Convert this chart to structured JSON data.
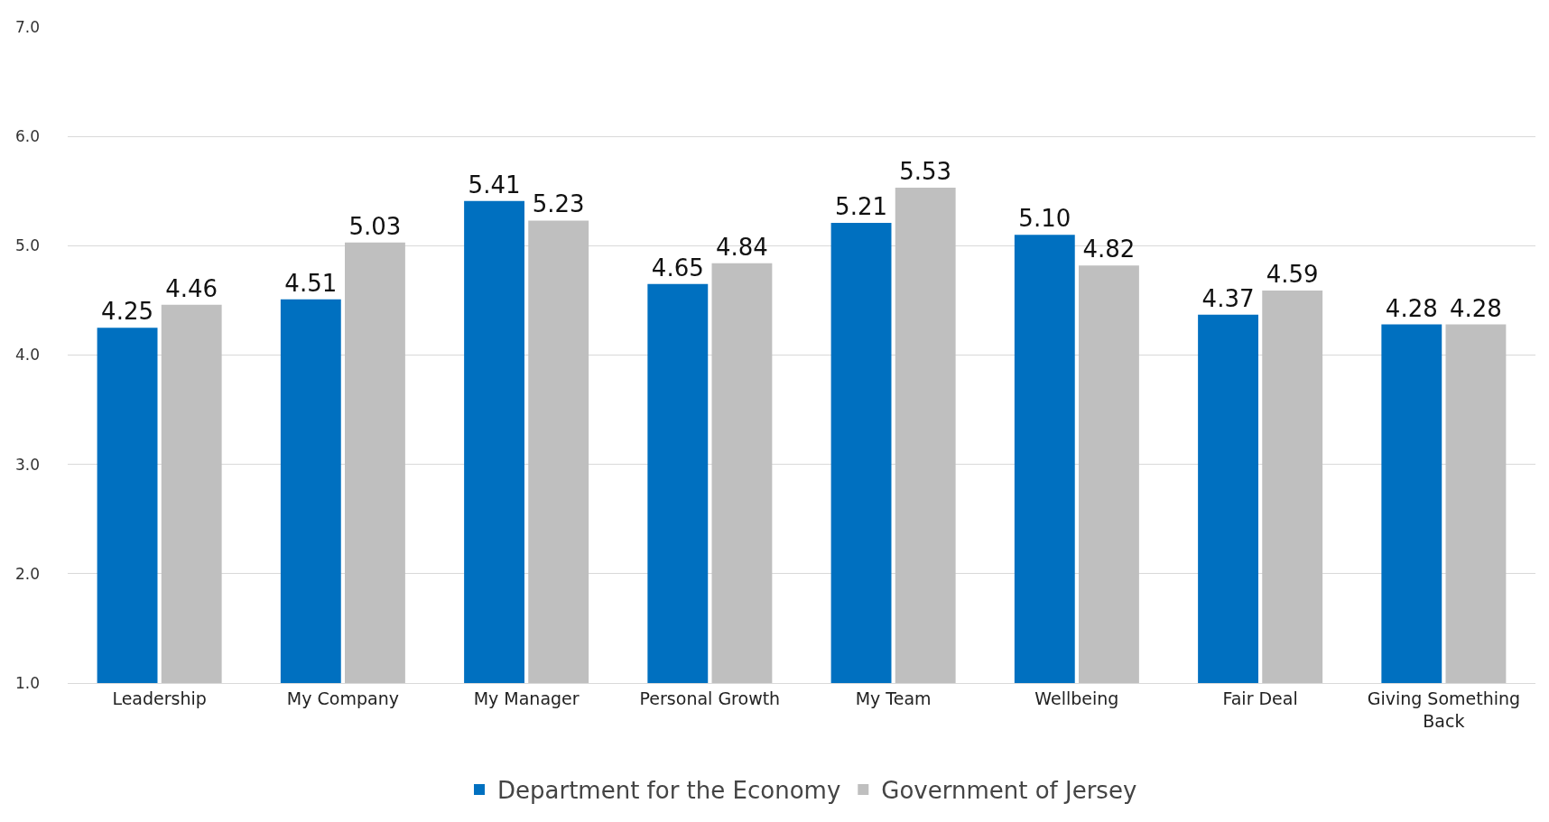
{
  "chart_data": {
    "type": "bar",
    "categories": [
      "Leadership",
      "My Company",
      "My Manager",
      "Personal Growth",
      "My Team",
      "Wellbeing",
      "Fair Deal",
      "Giving Something Back"
    ],
    "series": [
      {
        "name": "Department for the Economy",
        "color": "#0070c0",
        "values": [
          4.25,
          4.51,
          5.41,
          4.65,
          5.21,
          5.1,
          4.37,
          4.28
        ],
        "value_labels": [
          "4.25",
          "4.51",
          "5.41",
          "4.65",
          "5.21",
          "5.10",
          "4.37",
          "4.28"
        ]
      },
      {
        "name": "Government of Jersey",
        "color": "#bfbfbf",
        "values": [
          4.46,
          5.03,
          5.23,
          4.84,
          5.53,
          4.82,
          4.59,
          4.28
        ],
        "value_labels": [
          "4.46",
          "5.03",
          "5.23",
          "4.84",
          "5.53",
          "4.82",
          "4.59",
          "4.28"
        ]
      }
    ],
    "ylim": [
      1,
      7
    ],
    "yticks": [
      {
        "value": 1,
        "label": "1.0"
      },
      {
        "value": 2,
        "label": "2.0"
      },
      {
        "value": 3,
        "label": "3.0"
      },
      {
        "value": 4,
        "label": "4.0"
      },
      {
        "value": 5,
        "label": "5.0"
      },
      {
        "value": 6,
        "label": "6.0"
      },
      {
        "value": 7,
        "label": "7.0"
      }
    ],
    "grid": "y",
    "legend": "bottom"
  }
}
